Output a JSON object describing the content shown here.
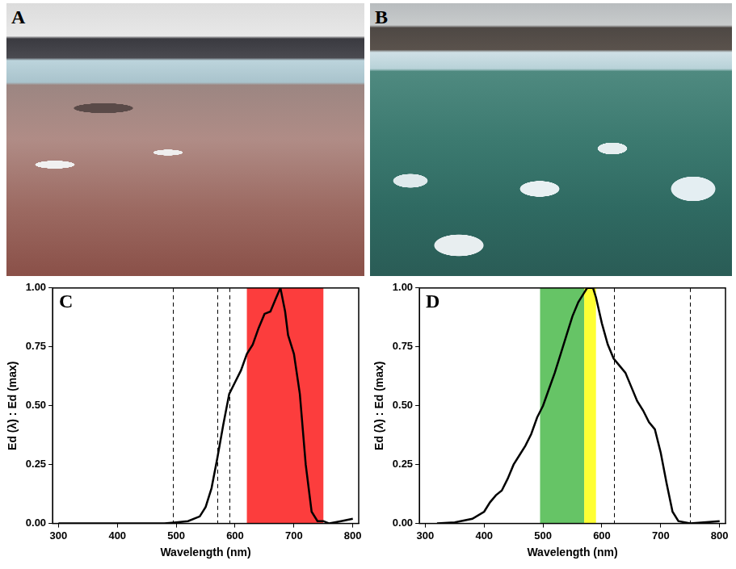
{
  "photos": [
    {
      "label": "A"
    },
    {
      "label": "B"
    }
  ],
  "chart_data": [
    {
      "type": "line",
      "panel": "C",
      "x_label": "Wavelength (nm)",
      "y_label": "Ed (λ) : Ed (max)",
      "xlim": [
        290,
        810
      ],
      "xticks": [
        300,
        400,
        500,
        600,
        700,
        800
      ],
      "ylim": [
        0,
        1
      ],
      "yticks": [
        {
          "value": 0,
          "label": "0.00"
        },
        {
          "value": 0.25,
          "label": "0.25"
        },
        {
          "value": 0.5,
          "label": "0.50"
        },
        {
          "value": 0.75,
          "label": "0.75"
        },
        {
          "value": 1,
          "label": "1.00"
        }
      ],
      "grid": false,
      "color": "#000000",
      "x": [
        300,
        350,
        400,
        450,
        480,
        500,
        520,
        540,
        550,
        560,
        570,
        580,
        590,
        600,
        610,
        620,
        630,
        640,
        650,
        660,
        670,
        677,
        685,
        690,
        700,
        710,
        720,
        730,
        740,
        750,
        760,
        780,
        800
      ],
      "values": [
        0,
        0,
        0,
        0,
        0,
        0.005,
        0.01,
        0.03,
        0.07,
        0.15,
        0.28,
        0.42,
        0.55,
        0.6,
        0.65,
        0.72,
        0.76,
        0.83,
        0.89,
        0.9,
        0.96,
        1.0,
        0.9,
        0.8,
        0.72,
        0.55,
        0.25,
        0.05,
        0.01,
        0.01,
        0.0,
        0.01,
        0.02
      ],
      "bands": [
        {
          "from": 620,
          "to": 750,
          "color": "#fc3d3d"
        }
      ],
      "vlines": [
        495,
        570,
        590
      ]
    },
    {
      "type": "line",
      "panel": "D",
      "x_label": "Wavelength (nm)",
      "y_label": "Ed (λ) : Ed (max)",
      "xlim": [
        290,
        810
      ],
      "xticks": [
        300,
        400,
        500,
        600,
        700,
        800
      ],
      "ylim": [
        0,
        1
      ],
      "yticks": [
        {
          "value": 0,
          "label": "0.00"
        },
        {
          "value": 0.25,
          "label": "0.25"
        },
        {
          "value": 0.5,
          "label": "0.50"
        },
        {
          "value": 0.75,
          "label": "0.75"
        },
        {
          "value": 1,
          "label": "1.00"
        }
      ],
      "grid": false,
      "color": "#000000",
      "x": [
        320,
        350,
        380,
        400,
        410,
        420,
        430,
        440,
        450,
        460,
        470,
        480,
        490,
        500,
        510,
        520,
        530,
        540,
        550,
        560,
        570,
        575,
        585,
        590,
        600,
        610,
        620,
        630,
        640,
        650,
        660,
        670,
        680,
        690,
        700,
        710,
        720,
        730,
        750,
        800
      ],
      "values": [
        0,
        0.005,
        0.02,
        0.05,
        0.09,
        0.12,
        0.14,
        0.19,
        0.25,
        0.29,
        0.33,
        0.38,
        0.45,
        0.5,
        0.57,
        0.64,
        0.72,
        0.8,
        0.88,
        0.94,
        0.98,
        1.0,
        1.0,
        0.96,
        0.85,
        0.76,
        0.7,
        0.67,
        0.64,
        0.58,
        0.52,
        0.48,
        0.43,
        0.4,
        0.3,
        0.17,
        0.05,
        0.01,
        0.0,
        0.01
      ],
      "bands": [
        {
          "from": 495,
          "to": 570,
          "color": "#66c466"
        },
        {
          "from": 570,
          "to": 590,
          "color": "#ffff33"
        }
      ],
      "vlines": [
        620,
        750
      ]
    }
  ]
}
